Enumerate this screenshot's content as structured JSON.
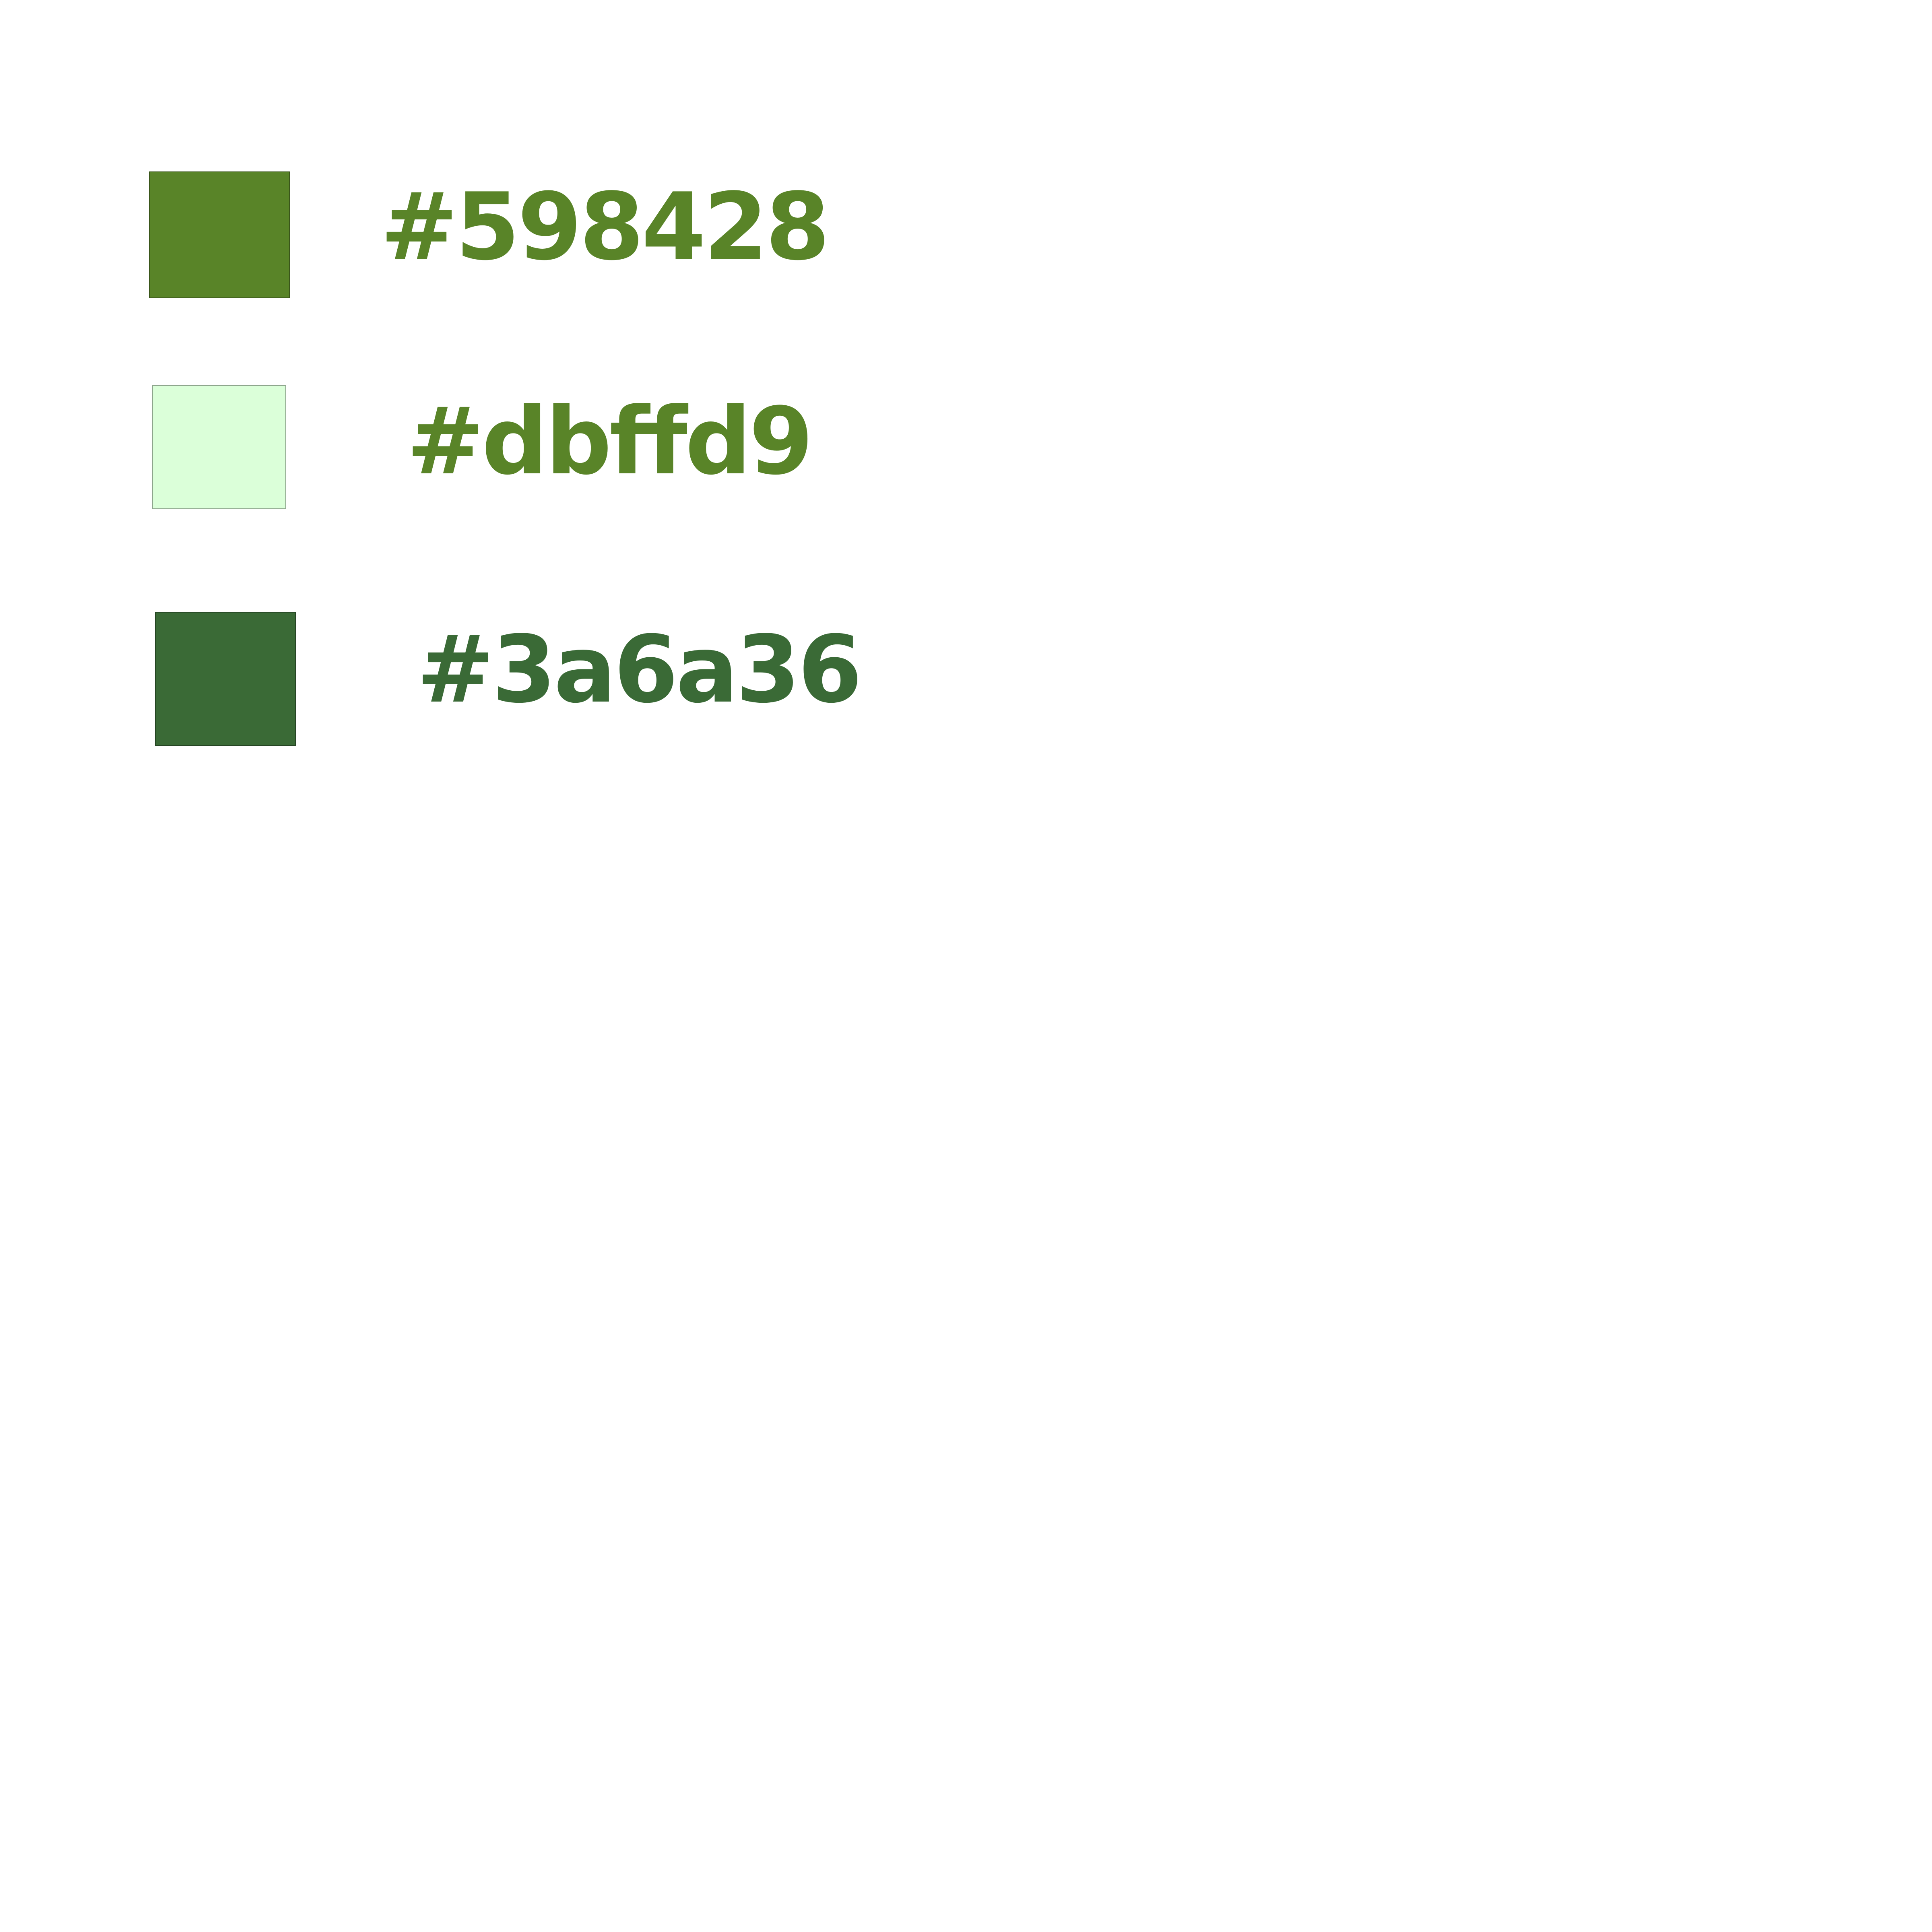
{
  "palette": [
    {
      "label": "#598428",
      "swatch_color": "#598428",
      "text_color": "#598428"
    },
    {
      "label": "#dbffd9",
      "swatch_color": "#dbffd9",
      "text_color": "#598428"
    },
    {
      "label": "#3a6a36",
      "swatch_color": "#3a6a36",
      "text_color": "#3a6a36"
    }
  ]
}
